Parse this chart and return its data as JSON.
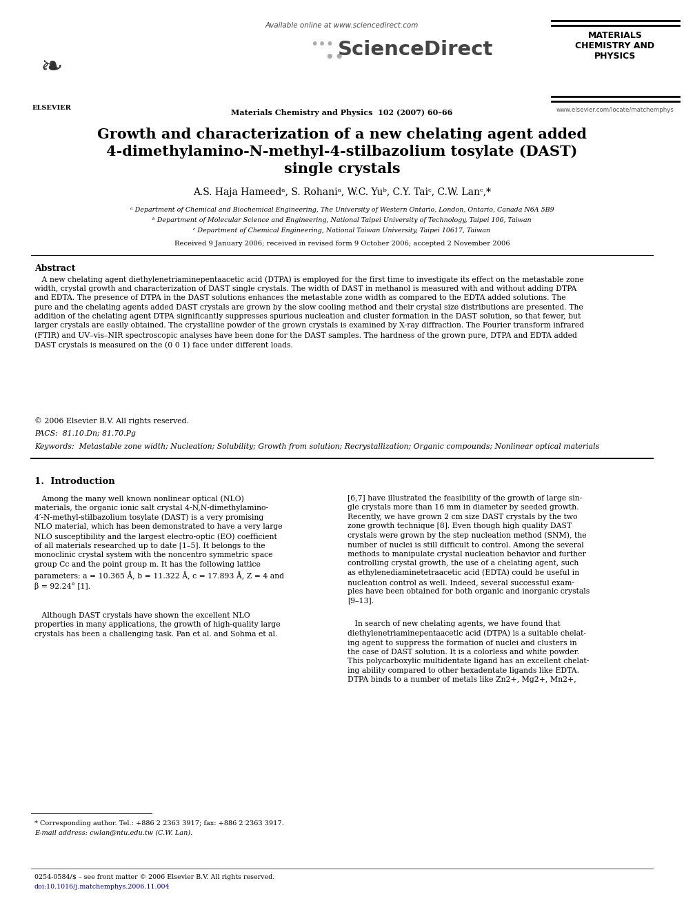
{
  "bg_color": "#ffffff",
  "available_online": "Available online at www.sciencedirect.com",
  "journal_name": "Materials Chemistry and Physics  102 (2007) 60–66",
  "journal_logo": "ScienceDirect",
  "journal_right_line1": "MATERIALS",
  "journal_right_line2": "CHEMISTRY AND",
  "journal_right_line3": "PHYSICS",
  "journal_url": "www.elsevier.com/locate/matchemphys",
  "elsevier_label": "ELSEVIER",
  "title_line1": "Growth and characterization of a new chelating agent added",
  "title_line2": "4-dimethylamino-Ν-methyl-4-stilbazolium tosylate (DAST)",
  "title_line3": "single crystals",
  "authors_line": "A.S. Haja Hameedᵃ, S. Rohaniᵃ, W.C. Yuᵇ, C.Y. Taiᶜ, C.W. Lanᶜ,*",
  "affil_a": "ᵃ Department of Chemical and Biochemical Engineering, The University of Western Ontario, London, Ontario, Canada N6A 5B9",
  "affil_b": "ᵇ Department of Molecular Science and Engineering, National Taipei University of Technology, Taipei 106, Taiwan",
  "affil_c": "ᶜ Department of Chemical Engineering, National Taiwan University, Taipei 10617, Taiwan",
  "received": "Received 9 January 2006; received in revised form 9 October 2006; accepted 2 November 2006",
  "abstract_title": "Abstract",
  "abstract_body": "   A new chelating agent diethylenetriaminepentaacetic acid (DTPA) is employed for the first time to investigate its effect on the metastable zone\nwidth, crystal growth and characterization of DAST single crystals. The width of DAST in methanol is measured with and without adding DTPA\nand EDTA. The presence of DTPA in the DAST solutions enhances the metastable zone width as compared to the EDTA added solutions. The\npure and the chelating agents added DAST crystals are grown by the slow cooling method and their crystal size distributions are presented. The\naddition of the chelating agent DTPA significantly suppresses spurious nucleation and cluster formation in the DAST solution, so that fewer, but\nlarger crystals are easily obtained. The crystalline powder of the grown crystals is examined by X-ray diffraction. The Fourier transform infrared\n(FTIR) and UV–vis–NIR spectroscopic analyses have been done for the DAST samples. The hardness of the grown pure, DTPA and EDTA added\nDAST crystals is measured on the (0 0 1) face under different loads.",
  "copyright": "© 2006 Elsevier B.V. All rights reserved.",
  "pacs": "PACS:  81.10.Dn; 81.70.Pg",
  "keywords": "Keywords:  Metastable zone width; Nucleation; Solubility; Growth from solution; Recrystallization; Organic compounds; Nonlinear optical materials",
  "intro_title": "1.  Introduction",
  "intro_col1_p1": "   Among the many well known nonlinear optical (NLO)\nmaterials, the organic ionic salt crystal 4-N,N-dimethylamino-\n4′-N-methyl-stilbazolium tosylate (DAST) is a very promising\nNLO material, which has been demonstrated to have a very large\nNLO susceptibility and the largest electro-optic (EO) coefficient\nof all materials researched up to date [1–5]. It belongs to the\nmonoclinic crystal system with the noncentro symmetric space\ngroup Cc and the point group m. It has the following lattice\nparameters: a = 10.365 Å, b = 11.322 Å, c = 17.893 Å, Z = 4 and\nβ = 92.24° [1].",
  "intro_col1_p2": "   Although DAST crystals have shown the excellent NLO\nproperties in many applications, the growth of high-quality large\ncrystals has been a challenging task. Pan et al. and Sohma et al.",
  "intro_col2_p1": "[6,7] have illustrated the feasibility of the growth of large sin-\ngle crystals more than 16 mm in diameter by seeded growth.\nRecently, we have grown 2 cm size DAST crystals by the two\nzone growth technique [8]. Even though high quality DAST\ncrystals were grown by the step nucleation method (SNM), the\nnumber of nuclei is still difficult to control. Among the several\nmethods to manipulate crystal nucleation behavior and further\ncontrolling crystal growth, the use of a chelating agent, such\nas ethylenediaminetetraacetic acid (EDTA) could be useful in\nnucleation control as well. Indeed, several successful exam-\nples have been obtained for both organic and inorganic crystals\n[9–13].",
  "intro_col2_p2": "   In search of new chelating agents, we have found that\ndiethylenetriaminepentaacetic acid (DTPA) is a suitable chelat-\ning agent to suppress the formation of nuclei and clusters in\nthe case of DAST solution. It is a colorless and white powder.\nThis polycarboxylic multidentate ligand has an excellent chelat-\ning ability compared to other hexadentate ligands like EDTA.\nDTPA binds to a number of metals like Zn2+, Mg2+, Mn2+,",
  "footnote_line1": "* Corresponding author. Tel.: +886 2 2363 3917; fax: +886 2 2363 3917.",
  "footnote_line2": "E-mail address: cwlan@ntu.edu.tw (C.W. Lan).",
  "footer_issn": "0254-0584/$ – see front matter © 2006 Elsevier B.V. All rights reserved.",
  "footer_doi": "doi:10.1016/j.matchemphys.2006.11.004"
}
